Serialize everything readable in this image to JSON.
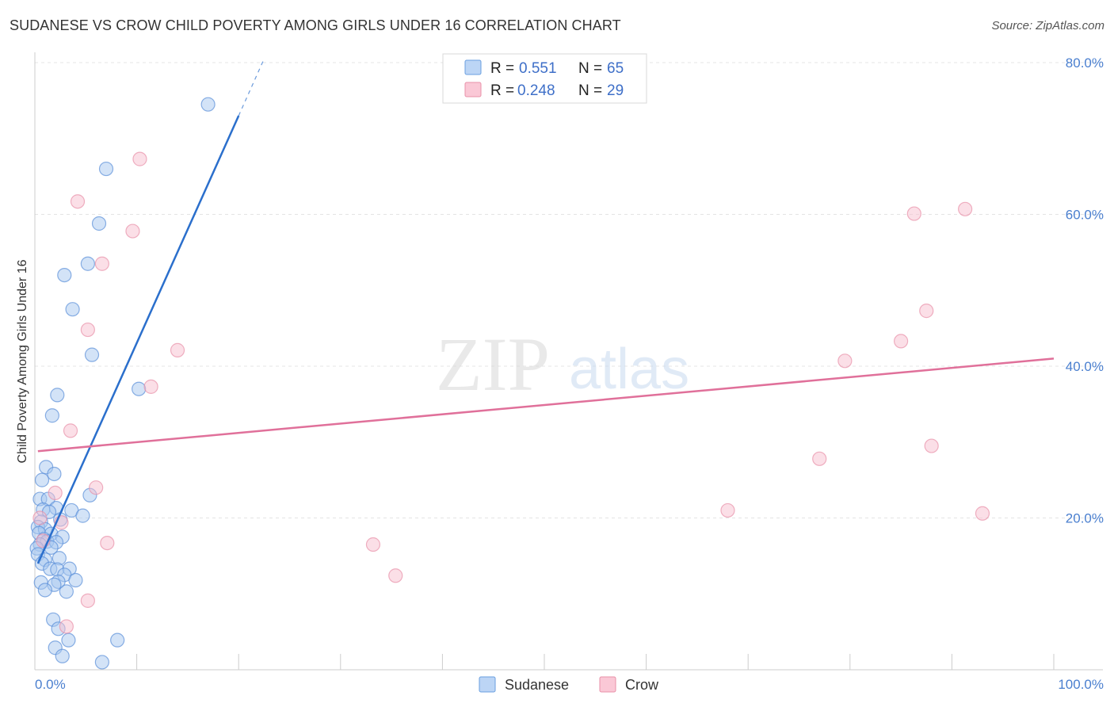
{
  "header": {
    "title": "SUDANESE VS CROW CHILD POVERTY AMONG GIRLS UNDER 16 CORRELATION CHART",
    "source": "Source: ZipAtlas.com"
  },
  "watermark": {
    "zip": "ZIP",
    "atlas": "atlas"
  },
  "chart_data": {
    "type": "scatter",
    "title": "SUDANESE VS CROW CHILD POVERTY AMONG GIRLS UNDER 16 CORRELATION CHART",
    "xlabel": "",
    "ylabel": "Child Poverty Among Girls Under 16",
    "xlim": [
      0,
      100
    ],
    "ylim": [
      0,
      80
    ],
    "x_tick_labels": [
      {
        "value": 0,
        "label": "0.0%"
      },
      {
        "value": 100,
        "label": "100.0%"
      }
    ],
    "y_tick_labels": [
      {
        "value": 20,
        "label": "20.0%"
      },
      {
        "value": 40,
        "label": "40.0%"
      },
      {
        "value": 60,
        "label": "60.0%"
      },
      {
        "value": 80,
        "label": "80.0%"
      }
    ],
    "grid": true,
    "legend_position": "top-center",
    "legend": [
      {
        "name": "Sudanese",
        "r_label": "R =",
        "r": "0.551",
        "n_label": "N =",
        "n": "65",
        "color": "#a8c8f0",
        "stroke": "#6a9fe0"
      },
      {
        "name": "Crow",
        "r_label": "R =",
        "r": "0.248",
        "n_label": "N =",
        "n": "29",
        "color": "#f8c0d0",
        "stroke": "#e890a8"
      }
    ],
    "series": [
      {
        "name": "Sudanese",
        "color": "#a8c8f0",
        "stroke": "#5a8fd8",
        "trend": {
          "x0": 0.3,
          "y0": 14.0,
          "x1": 20.0,
          "y1": 73.0,
          "dash_x1": 22.5,
          "dash_y1": 80.5,
          "color": "#2b6fcc"
        },
        "points": [
          [
            17.0,
            74.5
          ],
          [
            7.0,
            66.0
          ],
          [
            6.3,
            58.8
          ],
          [
            5.2,
            53.5
          ],
          [
            2.9,
            52.0
          ],
          [
            3.7,
            47.5
          ],
          [
            5.6,
            41.5
          ],
          [
            10.2,
            37.0
          ],
          [
            2.2,
            36.2
          ],
          [
            1.7,
            33.5
          ],
          [
            1.1,
            26.7
          ],
          [
            0.7,
            25.0
          ],
          [
            1.9,
            25.8
          ],
          [
            5.4,
            23.0
          ],
          [
            0.5,
            22.5
          ],
          [
            1.3,
            22.5
          ],
          [
            2.1,
            21.3
          ],
          [
            3.6,
            21.0
          ],
          [
            0.8,
            21.1
          ],
          [
            1.4,
            20.8
          ],
          [
            4.7,
            20.3
          ],
          [
            2.5,
            19.8
          ],
          [
            0.6,
            19.5
          ],
          [
            0.3,
            18.8
          ],
          [
            1.0,
            18.5
          ],
          [
            0.4,
            18.0
          ],
          [
            1.6,
            17.9
          ],
          [
            2.7,
            17.5
          ],
          [
            0.9,
            17.2
          ],
          [
            1.2,
            16.9
          ],
          [
            2.1,
            16.8
          ],
          [
            0.5,
            16.5
          ],
          [
            0.2,
            16.0
          ],
          [
            1.6,
            16.1
          ],
          [
            0.3,
            15.2
          ],
          [
            1.0,
            14.5
          ],
          [
            2.4,
            14.7
          ],
          [
            0.7,
            14.0
          ],
          [
            1.5,
            13.3
          ],
          [
            2.2,
            13.2
          ],
          [
            3.4,
            13.3
          ],
          [
            2.9,
            12.5
          ],
          [
            2.3,
            11.6
          ],
          [
            1.9,
            11.2
          ],
          [
            4.0,
            11.8
          ],
          [
            0.6,
            11.5
          ],
          [
            1.0,
            10.5
          ],
          [
            3.1,
            10.3
          ],
          [
            1.8,
            6.6
          ],
          [
            2.3,
            5.4
          ],
          [
            3.3,
            3.9
          ],
          [
            8.1,
            3.9
          ],
          [
            2.0,
            2.9
          ],
          [
            2.7,
            1.8
          ],
          [
            6.6,
            1.0
          ]
        ]
      },
      {
        "name": "Crow",
        "color": "#f8c0d0",
        "stroke": "#e890a8",
        "trend": {
          "x0": 0.3,
          "y0": 28.8,
          "x1": 100.0,
          "y1": 41.0,
          "color": "#e0709a"
        },
        "points": [
          [
            10.3,
            67.3
          ],
          [
            4.2,
            61.7
          ],
          [
            9.6,
            57.8
          ],
          [
            6.6,
            53.5
          ],
          [
            5.2,
            44.8
          ],
          [
            14.0,
            42.1
          ],
          [
            11.4,
            37.3
          ],
          [
            3.5,
            31.5
          ],
          [
            6.0,
            24.0
          ],
          [
            2.0,
            23.3
          ],
          [
            0.5,
            20.0
          ],
          [
            2.6,
            19.4
          ],
          [
            0.8,
            17.0
          ],
          [
            7.1,
            16.7
          ],
          [
            3.1,
            5.7
          ],
          [
            5.2,
            9.1
          ],
          [
            33.2,
            16.5
          ],
          [
            35.4,
            12.4
          ],
          [
            68.0,
            21.0
          ],
          [
            77.0,
            27.8
          ],
          [
            79.5,
            40.7
          ],
          [
            85.0,
            43.3
          ],
          [
            86.3,
            60.1
          ],
          [
            87.5,
            47.3
          ],
          [
            88.0,
            29.5
          ],
          [
            91.3,
            60.7
          ],
          [
            93.0,
            20.6
          ]
        ]
      }
    ]
  }
}
